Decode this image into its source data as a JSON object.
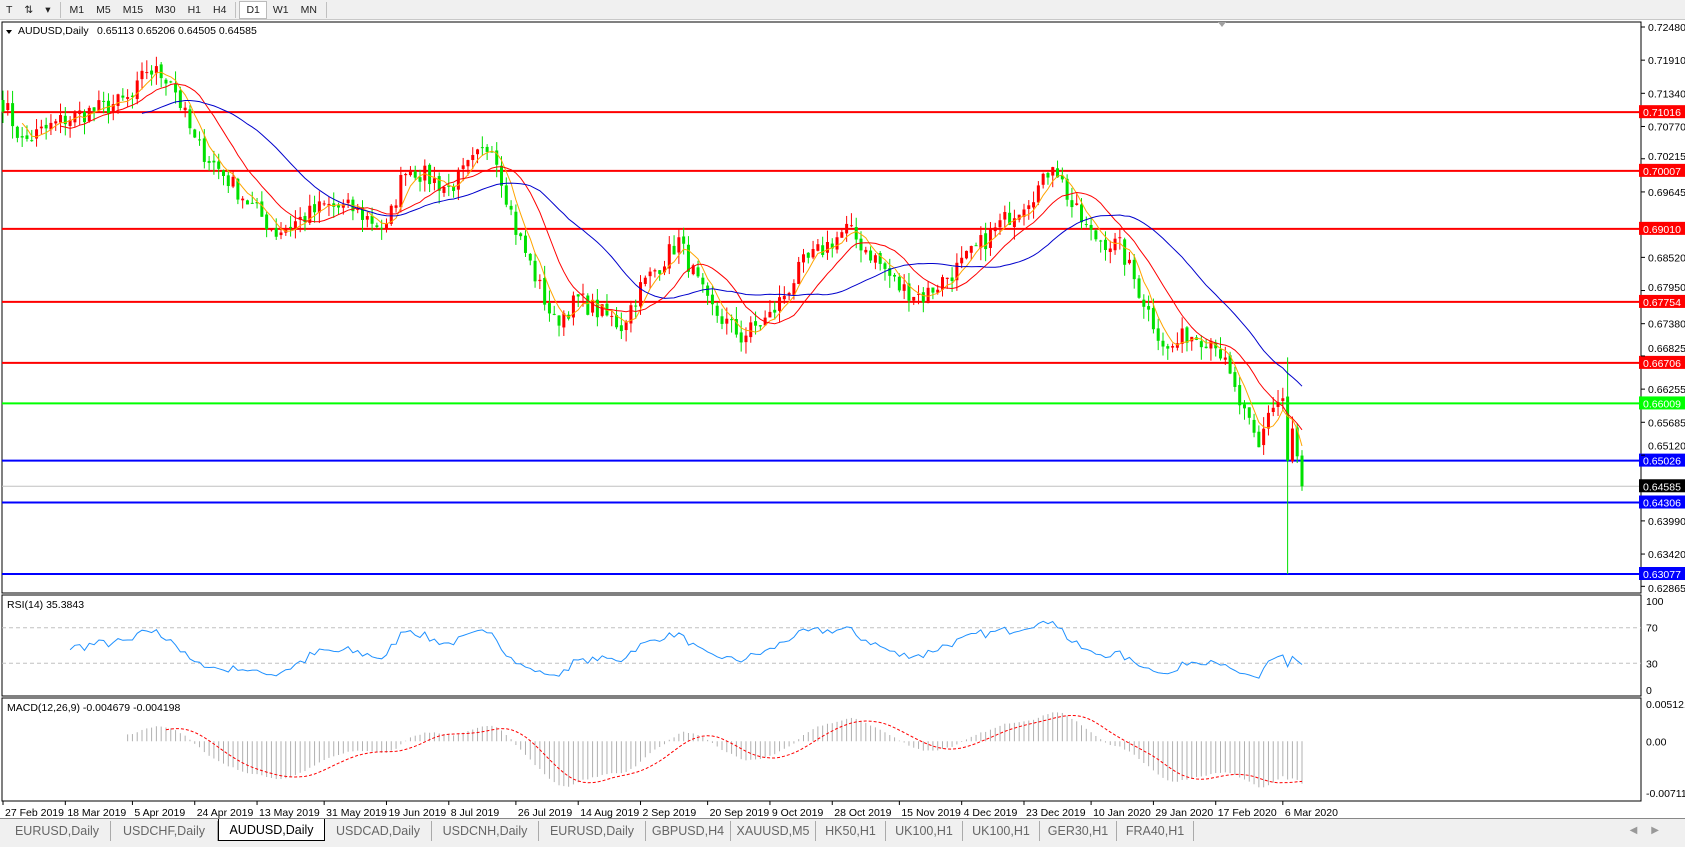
{
  "toolbar": {
    "tools": [
      {
        "name": "text-tool-icon",
        "glyph": "T"
      },
      {
        "name": "arrows-tool-icon",
        "glyph": "⇅"
      },
      {
        "name": "dropdown-icon",
        "glyph": "▾"
      }
    ],
    "timeframes": [
      "M1",
      "M5",
      "M15",
      "M30",
      "H1",
      "H4",
      "D1",
      "W1",
      "MN"
    ],
    "selected_timeframe": "D1"
  },
  "chart": {
    "header": {
      "symbol": "AUDUSD,Daily",
      "ohlc": "0.65113 0.65206 0.64505 0.64585"
    },
    "rsi_header": "RSI(14) 35.3843",
    "macd_header": "MACD(12,26,9) -0.004679 -0.004198",
    "colors": {
      "bull": "#ff0000",
      "bear": "#00e000",
      "ma_fast": "#ffa500",
      "ma_mid": "#ff0000",
      "ma_slow": "#0000cc",
      "rsi": "#1e90ff",
      "macd_hist": "#b0b0b0",
      "macd_signal": "#ff0000"
    }
  },
  "chart_data": {
    "type": "candlestick",
    "symbol": "AUDUSD",
    "timeframe": "Daily",
    "last_bar": {
      "open": 0.65113,
      "high": 0.65206,
      "low": 0.64505,
      "close": 0.64585
    },
    "price_path": [
      [
        "2019-02-27",
        0.712
      ],
      [
        "2019-03-05",
        0.705
      ],
      [
        "2019-03-18",
        0.709
      ],
      [
        "2019-04-05",
        0.7125
      ],
      [
        "2019-04-10",
        0.7175
      ],
      [
        "2019-04-17",
        0.716
      ],
      [
        "2019-04-24",
        0.705
      ],
      [
        "2019-05-13",
        0.693
      ],
      [
        "2019-05-17",
        0.6895
      ],
      [
        "2019-05-31",
        0.694
      ],
      [
        "2019-06-10",
        0.6935
      ],
      [
        "2019-06-19",
        0.69
      ],
      [
        "2019-06-25",
        0.701
      ],
      [
        "2019-07-08",
        0.697
      ],
      [
        "2019-07-19",
        0.705
      ],
      [
        "2019-07-26",
        0.69
      ],
      [
        "2019-08-02",
        0.68
      ],
      [
        "2019-08-07",
        0.674
      ],
      [
        "2019-08-14",
        0.678
      ],
      [
        "2019-08-27",
        0.6735
      ],
      [
        "2019-09-02",
        0.68
      ],
      [
        "2019-09-12",
        0.688
      ],
      [
        "2019-09-20",
        0.677
      ],
      [
        "2019-10-01",
        0.6715
      ],
      [
        "2019-10-09",
        0.675
      ],
      [
        "2019-10-18",
        0.684
      ],
      [
        "2019-10-31",
        0.69
      ],
      [
        "2019-11-08",
        0.685
      ],
      [
        "2019-11-15",
        0.68
      ],
      [
        "2019-11-22",
        0.6785
      ],
      [
        "2019-12-04",
        0.684
      ],
      [
        "2019-12-13",
        0.69
      ],
      [
        "2019-12-27",
        0.698
      ],
      [
        "2019-12-31",
        0.702
      ],
      [
        "2020-01-06",
        0.694
      ],
      [
        "2020-01-10",
        0.689
      ],
      [
        "2020-01-20",
        0.687
      ],
      [
        "2020-01-29",
        0.674
      ],
      [
        "2020-02-03",
        0.669
      ],
      [
        "2020-02-07",
        0.672
      ],
      [
        "2020-02-17",
        0.671
      ],
      [
        "2020-02-21",
        0.662
      ],
      [
        "2020-02-28",
        0.652
      ],
      [
        "2020-03-03",
        0.659
      ],
      [
        "2020-03-06",
        0.661
      ],
      [
        "2020-03-09",
        0.65
      ],
      [
        "2020-03-10",
        0.655
      ],
      [
        "2020-03-12",
        0.64585
      ]
    ],
    "spike": {
      "date": "2020-03-09",
      "low": 0.63077
    },
    "price_ticks": [
      "0.72480",
      "0.71910",
      "0.71340",
      "0.70770",
      "0.70215",
      "0.69645",
      "0.68520",
      "0.67950",
      "0.67380",
      "0.66825",
      "0.66255",
      "0.65685",
      "0.65120",
      "0.63990",
      "0.63420",
      "0.62865"
    ],
    "price_range": [
      0.62865,
      0.7248
    ],
    "levels": [
      {
        "price": "0.71016",
        "color": "#ff0000"
      },
      {
        "price": "0.70007",
        "color": "#ff0000"
      },
      {
        "price": "0.69010",
        "color": "#ff0000"
      },
      {
        "price": "0.67754",
        "color": "#ff0000"
      },
      {
        "price": "0.66706",
        "color": "#ff0000"
      },
      {
        "price": "0.66009",
        "color": "#00ff00"
      },
      {
        "price": "0.65026",
        "color": "#0000ff"
      },
      {
        "price": "0.64306",
        "color": "#0000ff"
      },
      {
        "price": "0.63077",
        "color": "#0000ff"
      }
    ],
    "current_price": {
      "price": "0.64585",
      "color": "#000000"
    },
    "rsi_ticks": [
      "100",
      "70",
      "30",
      "0"
    ],
    "macd_ticks": [
      "0.005121",
      "0.00",
      "-0.007111"
    ],
    "date_labels": [
      "27 Feb 2019",
      "18 Mar 2019",
      "5 Apr 2019",
      "24 Apr 2019",
      "13 May 2019",
      "31 May 2019",
      "19 Jun 2019",
      "8 Jul 2019",
      "26 Jul 2019",
      "14 Aug 2019",
      "2 Sep 2019",
      "20 Sep 2019",
      "9 Oct 2019",
      "28 Oct 2019",
      "15 Nov 2019",
      "4 Dec 2019",
      "23 Dec 2019",
      "10 Jan 2020",
      "29 Jan 2020",
      "17 Feb 2020",
      "6 Mar 2020"
    ]
  },
  "tabs": [
    {
      "label": "EURUSD,Daily"
    },
    {
      "label": "USDCHF,Daily"
    },
    {
      "label": "AUDUSD,Daily",
      "active": true
    },
    {
      "label": "USDCAD,Daily"
    },
    {
      "label": "USDCNH,Daily"
    },
    {
      "label": "EURUSD,Daily"
    },
    {
      "label": "GBPUSD,H4"
    },
    {
      "label": "XAUUSD,M5"
    },
    {
      "label": "HK50,H1"
    },
    {
      "label": "UK100,H1"
    },
    {
      "label": "UK100,H1"
    },
    {
      "label": "GER30,H1"
    },
    {
      "label": "FRA40,H1"
    }
  ]
}
